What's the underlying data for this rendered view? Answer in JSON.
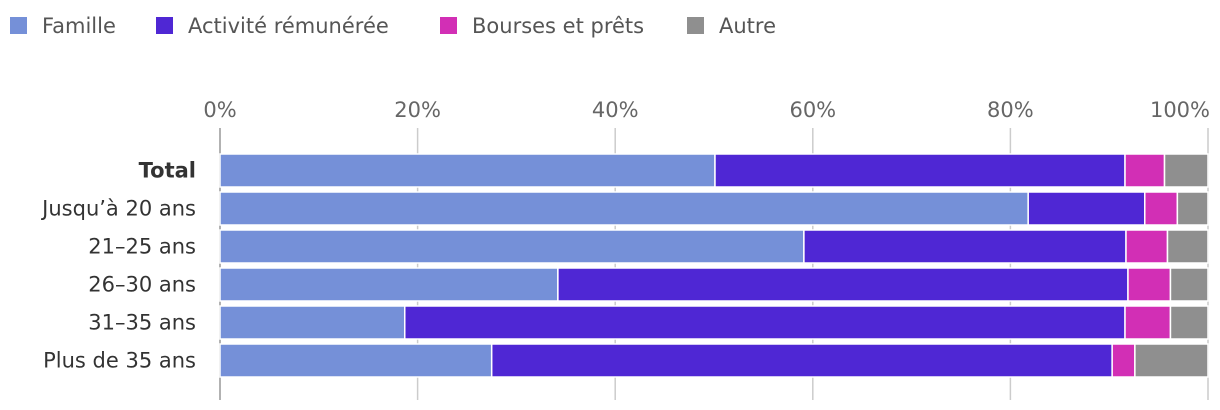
{
  "chart_data": {
    "type": "bar",
    "orientation": "horizontal",
    "stacked": true,
    "categories": [
      "Total",
      "Jusqu’à 20 ans",
      "21–25 ans",
      "26–30 ans",
      "31–35 ans",
      "Plus de 35 ans"
    ],
    "bold_categories": [
      "Total"
    ],
    "series": [
      {
        "name": "Famille",
        "color": "#7590d8",
        "values": [
          50.1,
          81.8,
          59.1,
          34.2,
          18.7,
          27.5
        ]
      },
      {
        "name": "Activité rémunérée",
        "color": "#4f27d4",
        "values": [
          41.5,
          11.8,
          32.6,
          57.7,
          72.9,
          62.8
        ]
      },
      {
        "name": "Bourses et prêts",
        "color": "#d22fb5",
        "values": [
          4.0,
          3.3,
          4.2,
          4.3,
          4.6,
          2.3
        ]
      },
      {
        "name": "Autre",
        "color": "#8f8f8f",
        "values": [
          4.4,
          3.1,
          4.1,
          3.8,
          3.8,
          7.4
        ]
      }
    ],
    "xlim": [
      0,
      100
    ],
    "ticks": [
      0,
      20,
      40,
      60,
      80,
      100
    ],
    "tick_labels": [
      "0%",
      "20%",
      "40%",
      "60%",
      "80%",
      "100%"
    ],
    "axis_position": "top",
    "legend_position": "top-left",
    "grid": true
  }
}
